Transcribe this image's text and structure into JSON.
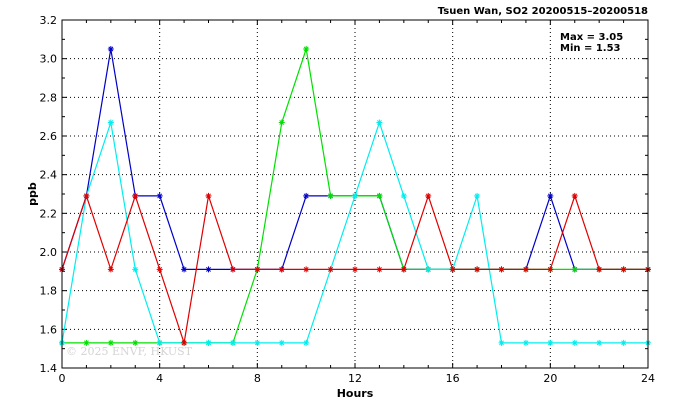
{
  "chart_data": {
    "type": "line",
    "title": "Tsuen Wan, SO2 20200515–20200518",
    "xlabel": "Hours",
    "ylabel": "ppb",
    "xlim": [
      0,
      24
    ],
    "ylim": [
      1.4,
      3.2
    ],
    "xticks": [
      0,
      4,
      8,
      12,
      16,
      20,
      24
    ],
    "yticks": [
      1.4,
      1.6,
      1.8,
      2.0,
      2.2,
      2.4,
      2.6,
      2.8,
      3.0,
      3.2
    ],
    "grid": true,
    "x": [
      0,
      1,
      2,
      3,
      4,
      5,
      6,
      7,
      8,
      9,
      10,
      11,
      12,
      13,
      14,
      15,
      16,
      17,
      18,
      19,
      20,
      21,
      22,
      23,
      24
    ],
    "series": [
      {
        "color": "#0000c8",
        "values": [
          1.91,
          2.29,
          3.05,
          2.29,
          2.29,
          1.91,
          1.91,
          1.91,
          1.91,
          1.91,
          2.29,
          2.29,
          2.29,
          2.29,
          1.91,
          1.91,
          1.91,
          1.91,
          1.91,
          1.91,
          2.29,
          1.91,
          1.91,
          1.91,
          1.91
        ]
      },
      {
        "color": "#00e000",
        "values": [
          1.53,
          1.53,
          1.53,
          1.53,
          1.53,
          1.53,
          1.53,
          1.53,
          1.91,
          2.67,
          3.05,
          2.29,
          2.29,
          2.29,
          1.91,
          1.91,
          1.91,
          1.91,
          1.91,
          1.91,
          1.91,
          1.91,
          1.91,
          1.91,
          1.91
        ]
      },
      {
        "color": "#00eeee",
        "values": [
          1.53,
          2.29,
          2.67,
          1.91,
          1.53,
          1.53,
          1.53,
          1.53,
          1.53,
          1.53,
          1.53,
          1.91,
          2.29,
          2.67,
          2.29,
          1.91,
          1.91,
          2.29,
          1.53,
          1.53,
          1.53,
          1.53,
          1.53,
          1.53,
          1.53
        ]
      },
      {
        "color": "#e00000",
        "values": [
          1.91,
          2.29,
          1.91,
          2.29,
          1.91,
          1.53,
          2.29,
          1.91,
          1.91,
          1.91,
          1.91,
          1.91,
          1.91,
          1.91,
          1.91,
          2.29,
          1.91,
          1.91,
          1.91,
          1.91,
          1.91,
          2.29,
          1.91,
          1.91,
          1.91
        ]
      }
    ],
    "stats": {
      "max_label": "Max = 3.05",
      "min_label": "Min = 1.53"
    },
    "watermark": "© 2025 ENVF, HKUST"
  }
}
